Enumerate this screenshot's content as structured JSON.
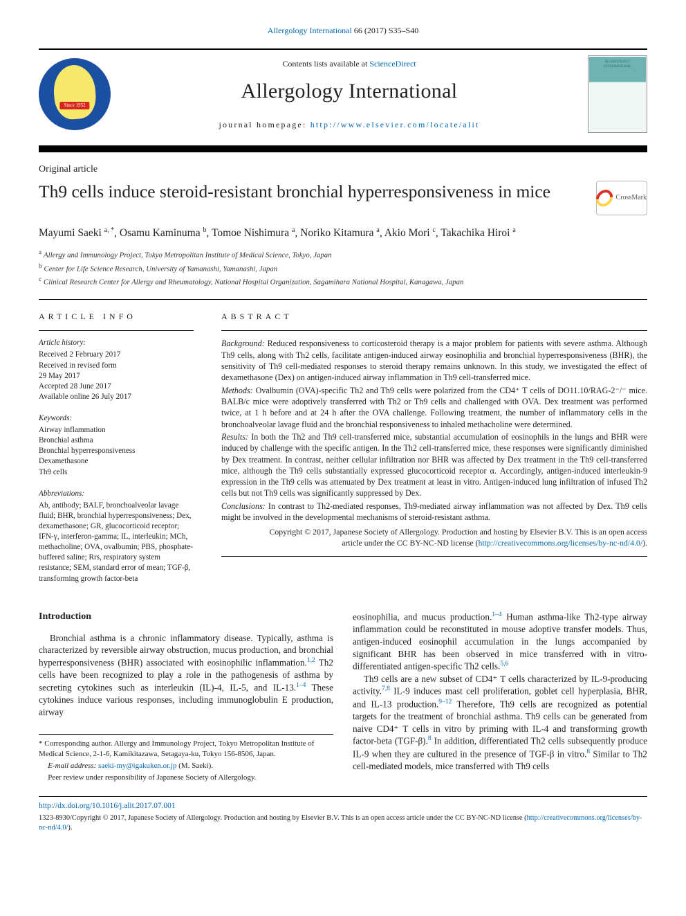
{
  "colors": {
    "link": "#0068b3",
    "text": "#231f20",
    "background": "#ffffff",
    "rule": "#000000",
    "jsa_blue": "#1b4fa1",
    "jsa_yellow": "#f6e86a",
    "jsa_red": "#d9261c",
    "cover_teal": "#6fb3b5",
    "crossmark_red": "#dc2d27",
    "crossmark_yellow": "#ffd54a"
  },
  "running_header": {
    "journal": "Allergology International",
    "vol_issue": "66 (2017)",
    "pages": "S35–S40"
  },
  "masthead": {
    "contents_prefix": "Contents lists available at ",
    "contents_link": "ScienceDirect",
    "journal_title": "Allergology International",
    "homepage_label": "journal homepage: ",
    "homepage_url": "http://www.elsevier.com/locate/alit",
    "jsa_logo_since": "Since 1952",
    "cover_caption_top": "ALLERGOLOGY",
    "cover_caption_bottom": "INTERNATIONAL"
  },
  "article": {
    "type": "Original article",
    "title": "Th9 cells induce steroid-resistant bronchial hyperresponsiveness in mice",
    "crossmark_label": "CrossMark",
    "authors_html": "Mayumi Saeki <sup>a, *</sup>, Osamu Kaminuma <sup>b</sup>, Tomoe Nishimura <sup>a</sup>, Noriko Kitamura <sup>a</sup>, Akio Mori <sup>c</sup>, Takachika Hiroi <sup>a</sup>",
    "affiliations": [
      {
        "tag": "a",
        "text": "Allergy and Immunology Project, Tokyo Metropolitan Institute of Medical Science, Tokyo, Japan"
      },
      {
        "tag": "b",
        "text": "Center for Life Science Research, University of Yamanashi, Yamanashi, Japan"
      },
      {
        "tag": "c",
        "text": "Clinical Research Center for Allergy and Rheumatology, National Hospital Organization, Sagamihara National Hospital, Kanagawa, Japan"
      }
    ]
  },
  "article_info": {
    "heading": "ARTICLE INFO",
    "history_label": "Article history:",
    "history": [
      "Received 2 February 2017",
      "Received in revised form",
      "29 May 2017",
      "Accepted 28 June 2017",
      "Available online 26 July 2017"
    ],
    "keywords_label": "Keywords:",
    "keywords": [
      "Airway inflammation",
      "Bronchial asthma",
      "Bronchial hyperresponsiveness",
      "Dexamethasone",
      "Th9 cells"
    ],
    "abbrev_label": "Abbreviations:",
    "abbreviations": "Ab, antibody; BALF, bronchoalveolar lavage fluid; BHR, bronchial hyperresponsiveness; Dex, dexamethasone; GR, glucocorticoid receptor; IFN-γ, interferon-gamma; IL, interleukin; MCh, methacholine; OVA, ovalbumin; PBS, phosphate-buffered saline; Rrs, respiratory system resistance; SEM, standard error of mean; TGF-β, transforming growth factor-beta"
  },
  "abstract": {
    "heading": "ABSTRACT",
    "sections": [
      {
        "label": "Background:",
        "text": "Reduced responsiveness to corticosteroid therapy is a major problem for patients with severe asthma. Although Th9 cells, along with Th2 cells, facilitate antigen-induced airway eosinophilia and bronchial hyperresponsiveness (BHR), the sensitivity of Th9 cell-mediated responses to steroid therapy remains unknown. In this study, we investigated the effect of dexamethasone (Dex) on antigen-induced airway inflammation in Th9 cell-transferred mice."
      },
      {
        "label": "Methods:",
        "text": "Ovalbumin (OVA)-specific Th2 and Th9 cells were polarized from the CD4⁺ T cells of DO11.10/RAG-2⁻/⁻ mice. BALB/c mice were adoptively transferred with Th2 or Th9 cells and challenged with OVA. Dex treatment was performed twice, at 1 h before and at 24 h after the OVA challenge. Following treatment, the number of inflammatory cells in the bronchoalveolar lavage fluid and the bronchial responsiveness to inhaled methacholine were determined."
      },
      {
        "label": "Results:",
        "text": "In both the Th2 and Th9 cell-transferred mice, substantial accumulation of eosinophils in the lungs and BHR were induced by challenge with the specific antigen. In the Th2 cell-transferred mice, these responses were significantly diminished by Dex treatment. In contrast, neither cellular infiltration nor BHR was affected by Dex treatment in the Th9 cell-transferred mice, although the Th9 cells substantially expressed glucocorticoid receptor α. Accordingly, antigen-induced interleukin-9 expression in the Th9 cells was attenuated by Dex treatment at least in vitro. Antigen-induced lung infiltration of infused Th2 cells but not Th9 cells was significantly suppressed by Dex."
      },
      {
        "label": "Conclusions:",
        "text": "In contrast to Th2-mediated responses, Th9-mediated airway inflammation was not affected by Dex. Th9 cells might be involved in the developmental mechanisms of steroid-resistant asthma."
      }
    ],
    "copyright_line1": "Copyright © 2017, Japanese Society of Allergology. Production and hosting by Elsevier B.V. This is an open access",
    "copyright_line2_prefix": "article under the CC BY-NC-ND license (",
    "copyright_link": "http://creativecommons.org/licenses/by-nc-nd/4.0/",
    "copyright_line2_suffix": ")."
  },
  "body": {
    "intro_heading": "Introduction",
    "p1": "Bronchial asthma is a chronic inflammatory disease. Typically, asthma is characterized by reversible airway obstruction, mucus production, and bronchial hyperresponsiveness (BHR) associated with eosinophilic inflammation.",
    "p1_ref1": "1,2",
    "p1b": " Th2 cells have been recognized to play a role in the pathogenesis of asthma by secreting cytokines such as interleukin (IL)-4, IL-5, and IL-13.",
    "p1_ref2": "1–4",
    "p1c": " These cytokines induce various responses, including immunoglobulin E production, airway",
    "p2a": "eosinophilia, and mucus production.",
    "p2_ref1": "1–4",
    "p2b": " Human asthma-like Th2-type airway inflammation could be reconstituted in mouse adoptive transfer models. Thus, antigen-induced eosinophil accumulation in the lungs accompanied by significant BHR has been observed in mice transferred with in vitro-differentiated antigen-specific Th2 cells.",
    "p2_ref2": "5,6",
    "p3a": "Th9 cells are a new subset of CD4⁺ T cells characterized by IL-9-producing activity.",
    "p3_ref1": "7,8",
    "p3b": " IL-9 induces mast cell proliferation, goblet cell hyperplasia, BHR, and IL-13 production.",
    "p3_ref2": "9–12",
    "p3c": " Therefore, Th9 cells are recognized as potential targets for the treatment of bronchial asthma. Th9 cells can be generated from naive CD4⁺ T cells in vitro by priming with IL-4 and transforming growth factor-beta (TGF-β).",
    "p3_ref3": "8",
    "p3d": " In addition, differentiated Th2 cells subsequently produce IL-9 when they are cultured in the presence of TGF-β in vitro.",
    "p3_ref4": "8",
    "p3e": " Similar to Th2 cell-mediated models, mice transferred with Th9 cells",
    "corr": {
      "star": "*",
      "address": "Corresponding author. Allergy and Immunology Project, Tokyo Metropolitan Institute of Medical Science, 2-1-6, Kamikitazawa, Setagaya-ku, Tokyo 156-8506, Japan.",
      "email_label": "E-mail address:",
      "email": "saeki-my@igakuken.or.jp",
      "email_who": "(M. Saeki).",
      "peer": "Peer review under responsibility of Japanese Society of Allergology."
    }
  },
  "footer": {
    "doi": "http://dx.doi.org/10.1016/j.alit.2017.07.001",
    "issn": "1323-8930/",
    "copy_prefix": "Copyright © 2017, Japanese Society of Allergology. Production and hosting by Elsevier B.V. This is an open access article under the CC BY-NC-ND license (",
    "copy_link": "http://creativecommons.org/licenses/by-nc-nd/4.0/",
    "copy_suffix": ")."
  }
}
